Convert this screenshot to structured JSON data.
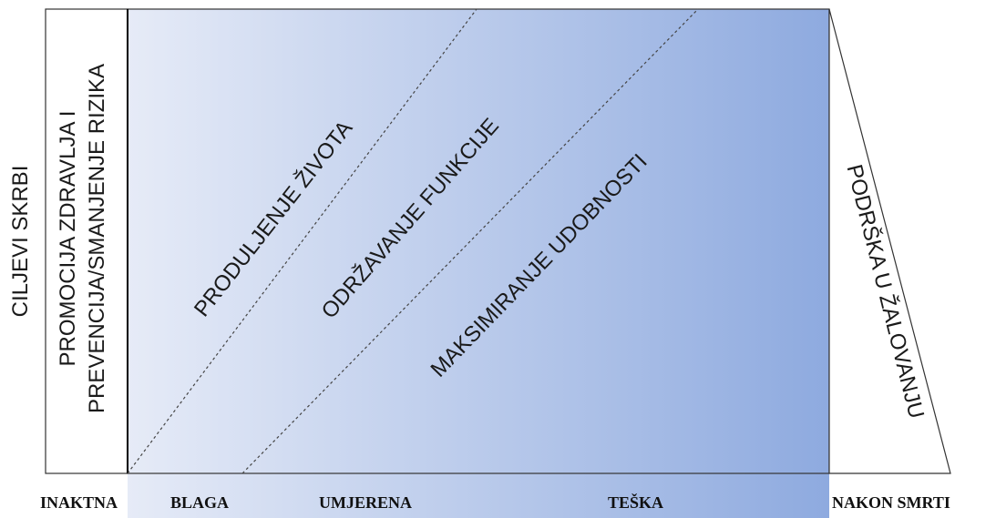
{
  "left_label": "CILJEVI SKRBI",
  "column_label": {
    "line1": "PROMOCIJA ZDRAVLJA I",
    "line2": "PREVENCIJA/SMANJENJE RIZIKA"
  },
  "band_labels": {
    "band1": "PRODULJENJE ŽIVOTA",
    "band2": "ODRŽAVANJE FUNKCIJE",
    "band3": "MAKSIMIRANJE UDOBNOSTI"
  },
  "right_label": "PODRŠKA U ŽALOVANJU",
  "stages": {
    "inaktna": "INAKTNA",
    "blaga": "BLAGA",
    "umjerena": "UMJERENA",
    "teska": "TEŠKA",
    "nakon_smrti": "NAKON SMRTI"
  },
  "colors": {
    "gradient_start": "#e6ebf7",
    "gradient_end": "#8eaadf",
    "outline": "#333333",
    "text": "#1a1a1a"
  }
}
